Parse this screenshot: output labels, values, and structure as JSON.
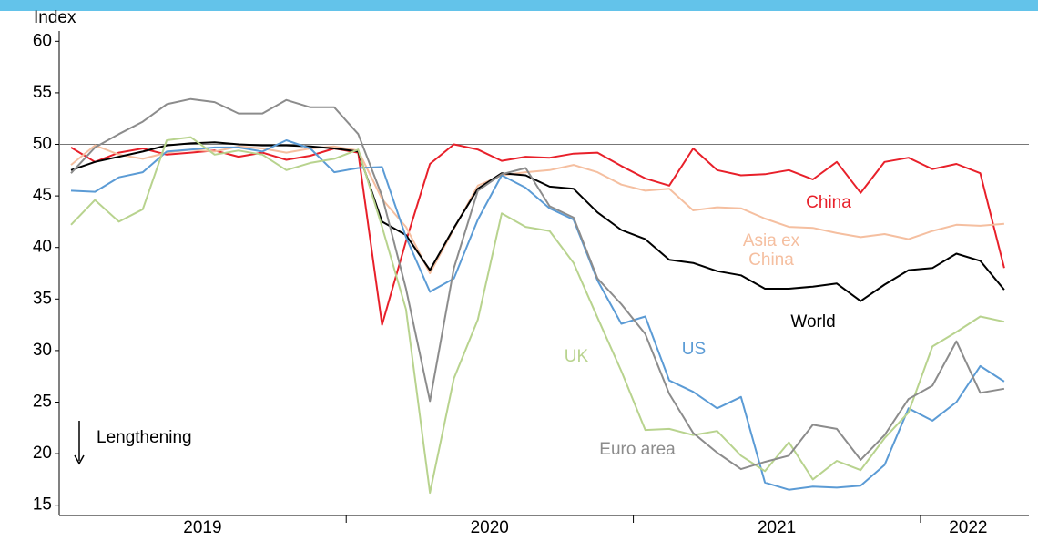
{
  "chart_data": {
    "type": "line",
    "y_label": "Index",
    "annotation": "Lengthening",
    "categories": [
      null,
      null,
      null,
      null,
      null,
      "2019",
      null,
      null,
      null,
      null,
      null,
      null,
      null,
      null,
      null,
      null,
      null,
      "2020",
      null,
      null,
      null,
      null,
      null,
      null,
      null,
      null,
      null,
      null,
      null,
      "2021",
      null,
      null,
      null,
      null,
      null,
      null,
      null,
      "2022",
      null,
      null
    ],
    "ylim": [
      14,
      61
    ],
    "yticks": [
      15,
      20,
      25,
      30,
      35,
      40,
      45,
      50,
      55,
      60
    ],
    "reference_line": 50,
    "series": [
      {
        "name": "China",
        "color": "#e8202a",
        "values": [
          49.7,
          48.3,
          49.2,
          49.6,
          49.0,
          49.2,
          49.4,
          48.8,
          49.2,
          48.5,
          48.9,
          49.6,
          49.2,
          32.5,
          40.6,
          48.1,
          50.0,
          49.5,
          48.4,
          48.8,
          48.7,
          49.1,
          49.2,
          47.9,
          46.7,
          46.0,
          49.6,
          47.5,
          47.0,
          47.1,
          47.5,
          46.6,
          48.3,
          45.3,
          48.3,
          48.7,
          47.6,
          48.1,
          47.2,
          38.0
        ]
      },
      {
        "name": "Asia ex China",
        "color": "#f5bfa0",
        "values": [
          48.0,
          49.9,
          49.0,
          48.6,
          49.2,
          49.5,
          49.3,
          49.8,
          49.6,
          49.2,
          49.6,
          49.8,
          49.4,
          44.7,
          42.0,
          37.5,
          41.8,
          46.0,
          47.0,
          47.3,
          47.5,
          48.0,
          47.3,
          46.1,
          45.5,
          45.7,
          43.6,
          43.9,
          43.8,
          42.8,
          42.0,
          41.9,
          41.4,
          41.0,
          41.3,
          40.8,
          41.6,
          42.2,
          42.1,
          42.3
        ]
      },
      {
        "name": "World",
        "color": "#000000",
        "values": [
          47.5,
          48.3,
          48.8,
          49.3,
          49.9,
          50.1,
          50.2,
          50.0,
          49.9,
          49.9,
          49.8,
          49.6,
          49.3,
          42.5,
          41.2,
          37.8,
          41.9,
          45.7,
          47.2,
          47.0,
          45.9,
          45.7,
          43.4,
          41.7,
          40.8,
          38.8,
          38.5,
          37.7,
          37.3,
          36.0,
          36.0,
          36.2,
          36.5,
          34.8,
          36.4,
          37.8,
          38.0,
          39.4,
          38.7,
          35.9
        ]
      },
      {
        "name": "US",
        "color": "#5b9bd5",
        "values": [
          45.5,
          45.4,
          46.8,
          47.3,
          49.3,
          49.5,
          49.7,
          49.7,
          49.3,
          50.4,
          49.6,
          47.3,
          47.7,
          47.8,
          41.0,
          35.7,
          37.0,
          42.7,
          47.0,
          45.8,
          43.8,
          42.7,
          36.8,
          32.6,
          33.3,
          27.1,
          26.0,
          24.4,
          25.5,
          17.2,
          16.5,
          16.8,
          16.7,
          16.9,
          18.9,
          24.4,
          23.2,
          25.0,
          28.5,
          27.0
        ]
      },
      {
        "name": "UK",
        "color": "#b8d38e",
        "values": [
          42.2,
          44.6,
          42.5,
          43.7,
          50.4,
          50.7,
          49.0,
          49.4,
          49.0,
          47.5,
          48.2,
          48.6,
          49.5,
          42.0,
          34.0,
          16.2,
          27.3,
          33.0,
          43.3,
          42.0,
          41.6,
          38.5,
          33.2,
          28.0,
          22.3,
          22.4,
          21.8,
          22.2,
          19.8,
          18.3,
          21.1,
          17.5,
          19.3,
          18.4,
          21.5,
          24.0,
          30.4,
          31.8,
          33.3,
          32.8
        ]
      },
      {
        "name": "Euro area",
        "color": "#8c8c8c",
        "values": [
          47.2,
          49.7,
          51.0,
          52.2,
          53.9,
          54.4,
          54.1,
          53.0,
          53.0,
          54.3,
          53.6,
          53.6,
          51.0,
          45.0,
          36.0,
          25.1,
          38.0,
          45.5,
          47.1,
          47.7,
          44.0,
          42.9,
          37.0,
          34.5,
          31.6,
          25.8,
          22.0,
          20.1,
          18.5,
          19.2,
          19.8,
          22.8,
          22.4,
          19.4,
          21.8,
          25.3,
          26.6,
          30.9,
          25.9,
          26.3
        ]
      }
    ]
  }
}
